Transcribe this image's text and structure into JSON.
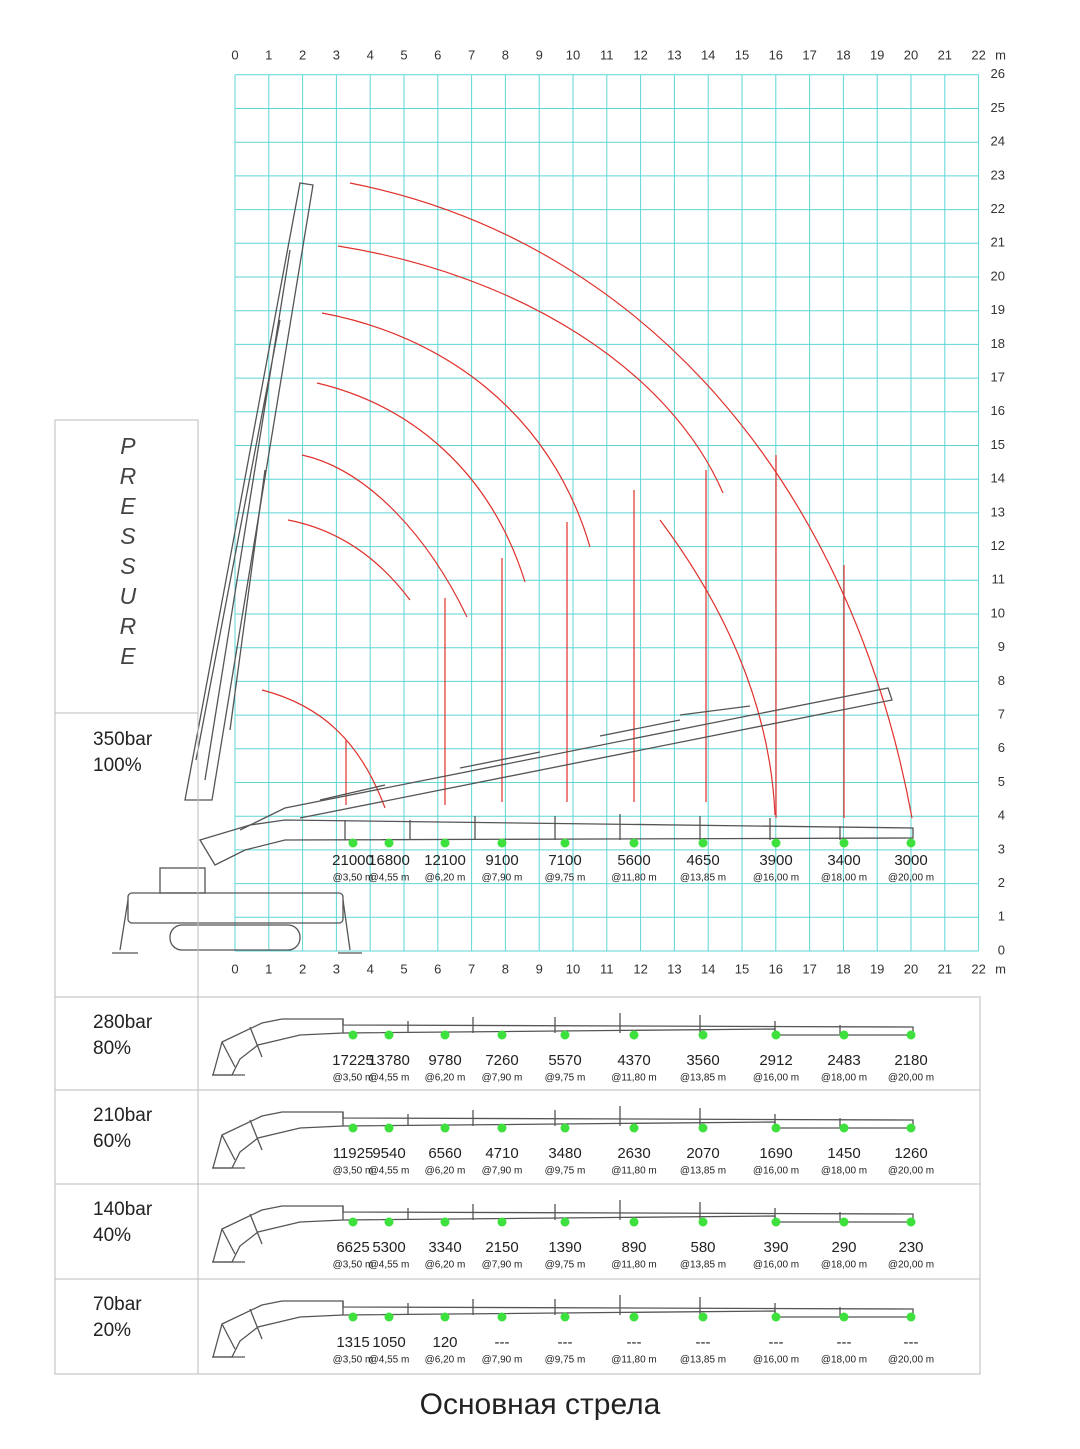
{
  "x_axis": {
    "ticks": [
      "0",
      "1",
      "2",
      "3",
      "4",
      "5",
      "6",
      "7",
      "8",
      "9",
      "10",
      "11",
      "12",
      "13",
      "14",
      "15",
      "16",
      "17",
      "18",
      "19",
      "20",
      "21",
      "22"
    ],
    "unit": "m"
  },
  "y_axis": {
    "ticks": [
      "0",
      "1",
      "2",
      "3",
      "4",
      "5",
      "6",
      "7",
      "8",
      "9",
      "10",
      "11",
      "12",
      "13",
      "14",
      "15",
      "16",
      "17",
      "18",
      "19",
      "20",
      "21",
      "22",
      "23",
      "24",
      "25",
      "26"
    ]
  },
  "side_label": "PRESSURE",
  "radii": [
    "@3,50 m",
    "@4,55 m",
    "@6,20 m",
    "@7,90 m",
    "@9,75 m",
    "@11,80 m",
    "@13,85 m",
    "@16,00 m",
    "@18,00 m",
    "@20,00 m"
  ],
  "rows": [
    {
      "pressure": "350bar",
      "percent": "100%",
      "loads": [
        "21000",
        "16800",
        "12100",
        "9100",
        "7100",
        "5600",
        "4650",
        "3900",
        "3400",
        "3000"
      ]
    },
    {
      "pressure": "280bar",
      "percent": "80%",
      "loads": [
        "17225",
        "13780",
        "9780",
        "7260",
        "5570",
        "4370",
        "3560",
        "2912",
        "2483",
        "2180"
      ]
    },
    {
      "pressure": "210bar",
      "percent": "60%",
      "loads": [
        "11925",
        "9540",
        "6560",
        "4710",
        "3480",
        "2630",
        "2070",
        "1690",
        "1450",
        "1260"
      ]
    },
    {
      "pressure": "140bar",
      "percent": "40%",
      "loads": [
        "6625",
        "5300",
        "3340",
        "2150",
        "1390",
        "890",
        "580",
        "390",
        "290",
        "230"
      ]
    },
    {
      "pressure": "70bar",
      "percent": "20%",
      "loads": [
        "1315",
        "1050",
        "120",
        "---",
        "---",
        "---",
        "---",
        "---",
        "---",
        "---"
      ]
    }
  ],
  "caption": "Основная стрела"
}
